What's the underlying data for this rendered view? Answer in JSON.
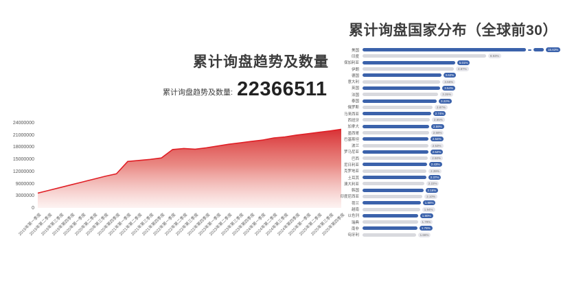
{
  "left_chart": {
    "title": "累计询盘趋势及数量",
    "stat_label": "累计询盘趋势及数量:",
    "stat_value": "22366511"
  },
  "right_chart": {
    "title": "累计询盘国家分布（全球前30）"
  },
  "colors": {
    "area_line": "#e01f26",
    "area_fill_top": "#d6262a",
    "area_fill_bottom": "#fbe9e7",
    "bar_blue": "#3b62ab",
    "bar_gray": "#d8d9de",
    "badge_gray_bg": "#e7e7ec"
  },
  "chart_data": [
    {
      "type": "area",
      "title": "累计询盘趋势及数量",
      "x": [
        "2019年第一季度",
        "2019年第二季度",
        "2019年第三季度",
        "2019年第四季度",
        "2020年第一季度",
        "2020年第二季度",
        "2020年第三季度",
        "2020年第四季度",
        "2021年第一季度",
        "2021年第二季度",
        "2021年第三季度",
        "2021年第四季度",
        "2022年第一季度",
        "2022年第二季度",
        "2022年第三季度",
        "2022年第四季度",
        "2023年第一季度",
        "2023年第二季度",
        "2023年第三季度",
        "2023年第四季度",
        "2024年第一季度",
        "2024年第二季度",
        "2024年第三季度",
        "2024年第四季度",
        "2025年第一季度",
        "2025年第二季度",
        "2025年第三季度",
        "2025年第四季度"
      ],
      "values": [
        4200000,
        5000000,
        5800000,
        6600000,
        7400000,
        8200000,
        9000000,
        9700000,
        13200000,
        13500000,
        13800000,
        14200000,
        16600000,
        16900000,
        16700000,
        17100000,
        17600000,
        18100000,
        18500000,
        18900000,
        19300000,
        19900000,
        20200000,
        20700000,
        21100000,
        21500000,
        21900000,
        22366511
      ],
      "y_tick_labels": [
        "24000000",
        "21000000",
        "18000000",
        "15000000",
        "12000000",
        "9000000",
        "3000000",
        "0"
      ],
      "ylim": [
        0,
        24000000
      ],
      "grid": false,
      "legend": false
    },
    {
      "type": "bar",
      "orientation": "horizontal",
      "title": "累计询盘国家分布（全球前30）",
      "categories": [
        "美国",
        "印度",
        "保加利亚",
        "伊朗",
        "德国",
        "意大利",
        "英国",
        "法国",
        "泰国",
        "俄罗斯",
        "马来西亚",
        "西班牙",
        "加拿大",
        "墨西哥",
        "巴基斯坦",
        "波兰",
        "罗马尼亚",
        "巴西",
        "尼日利亚",
        "克罗地亚",
        "土耳其",
        "澳大利亚",
        "韩国",
        "印度尼西亚",
        "荷兰",
        "越南",
        "以色列",
        "瑞典",
        "南非",
        "匈牙利"
      ],
      "values": [
        15.63,
        8.93,
        5.01,
        4.87,
        3.62,
        3.55,
        3.54,
        3.35,
        3.22,
        2.87,
        2.74,
        2.65,
        2.59,
        2.58,
        2.54,
        2.53,
        2.52,
        2.5,
        2.43,
        2.39,
        2.37,
        2.22,
        2.16,
        2.1,
        1.98,
        1.94,
        1.8,
        1.79,
        1.76,
        1.66
      ],
      "value_suffix": "%",
      "legend": false,
      "note": "bars alternate blue/gray; first bar drawn with axis-break marker"
    }
  ]
}
